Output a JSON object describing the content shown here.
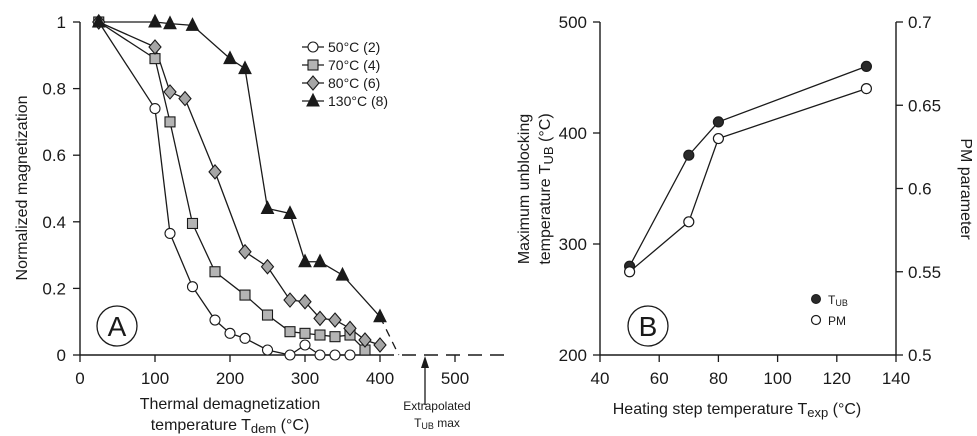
{
  "chart_data": [
    {
      "type": "line",
      "panel_label": "A",
      "xlabel_line1": "Thermal demagnetization",
      "xlabel_line2": "temperature T",
      "xlabel_sub": "dem",
      "xlabel_unit": " (°C)",
      "ylabel": "Normalized magnetization",
      "xlim": [
        0,
        580
      ],
      "ylim": [
        0,
        1
      ],
      "xticks": [
        0,
        100,
        200,
        300,
        400,
        500
      ],
      "yticks": [
        0,
        0.2,
        0.4,
        0.6,
        0.8,
        1
      ],
      "ytick_labels": [
        "0",
        "0.2",
        "0.4",
        "0.6",
        "0.8",
        "1"
      ],
      "series": [
        {
          "name": "50°C",
          "count": "(2)",
          "marker": "circle",
          "fill": "#ffffff",
          "x": [
            25,
            100,
            120,
            150,
            180,
            200,
            220,
            250,
            280,
            300,
            320,
            340,
            360
          ],
          "y": [
            1.0,
            0.74,
            0.365,
            0.205,
            0.105,
            0.065,
            0.05,
            0.015,
            0.0,
            0.03,
            0.0,
            0.0,
            0.0
          ]
        },
        {
          "name": "70°C",
          "count": "(4)",
          "marker": "square",
          "fill": "#b4b4b4",
          "x": [
            25,
            100,
            120,
            150,
            180,
            220,
            250,
            280,
            300,
            320,
            340,
            360,
            380
          ],
          "y": [
            1.0,
            0.89,
            0.7,
            0.395,
            0.25,
            0.18,
            0.12,
            0.07,
            0.065,
            0.06,
            0.055,
            0.06,
            0.015
          ]
        },
        {
          "name": "80°C",
          "count": "(6)",
          "marker": "diamond",
          "fill": "#a6a6a6",
          "x": [
            25,
            100,
            120,
            140,
            180,
            220,
            250,
            280,
            300,
            320,
            340,
            360,
            380,
            400
          ],
          "y": [
            1.0,
            0.925,
            0.79,
            0.77,
            0.55,
            0.31,
            0.265,
            0.165,
            0.16,
            0.11,
            0.105,
            0.08,
            0.045,
            0.03
          ]
        },
        {
          "name": "130°C",
          "count": "(8)",
          "marker": "triangle",
          "fill": "#1a1a1a",
          "x": [
            25,
            100,
            120,
            150,
            200,
            220,
            250,
            280,
            300,
            320,
            350,
            400
          ],
          "y": [
            1.0,
            1.0,
            0.995,
            0.99,
            0.89,
            0.86,
            0.44,
            0.425,
            0.28,
            0.28,
            0.24,
            0.115
          ]
        }
      ],
      "extrapolation": {
        "x": [
          400,
          425
        ],
        "y": [
          0.115,
          0.0
        ]
      },
      "zero_line_end_x": 500,
      "annotation": {
        "line1": "Extrapolated",
        "line2_main": "T",
        "line2_sub": "UB",
        "line2_rest": " max",
        "x": 425
      }
    },
    {
      "type": "line",
      "panel_label": "B",
      "xlabel": "Heating step temperature T",
      "xlabel_sub": "exp",
      "xlabel_unit": " (°C)",
      "ylabel_line1": "Maximum unblocking",
      "ylabel_line2": "temperature T",
      "ylabel_sub": "UB",
      "ylabel_unit": " (°C)",
      "y2label": "PM parameter",
      "xlim": [
        40,
        140
      ],
      "ylim": [
        200,
        500
      ],
      "y2lim": [
        0.5,
        0.7
      ],
      "xticks": [
        40,
        60,
        80,
        100,
        120,
        140
      ],
      "yticks": [
        200,
        300,
        400,
        500
      ],
      "y2ticks": [
        0.5,
        0.55,
        0.6,
        0.65,
        0.7
      ],
      "y2tick_labels": [
        "0.5",
        "0.55",
        "0.6",
        "0.65",
        "0.7"
      ],
      "series": [
        {
          "name": "T",
          "name_sub": "UB",
          "axis": "left",
          "marker": "circle",
          "fill": "#2a2a2a",
          "x": [
            50,
            70,
            80,
            130
          ],
          "y": [
            280,
            380,
            410,
            460
          ]
        },
        {
          "name": "PM",
          "axis": "right",
          "marker": "circle",
          "fill": "#ffffff",
          "x": [
            50,
            70,
            80,
            130
          ],
          "y": [
            0.55,
            0.58,
            0.63,
            0.66
          ]
        }
      ]
    }
  ]
}
